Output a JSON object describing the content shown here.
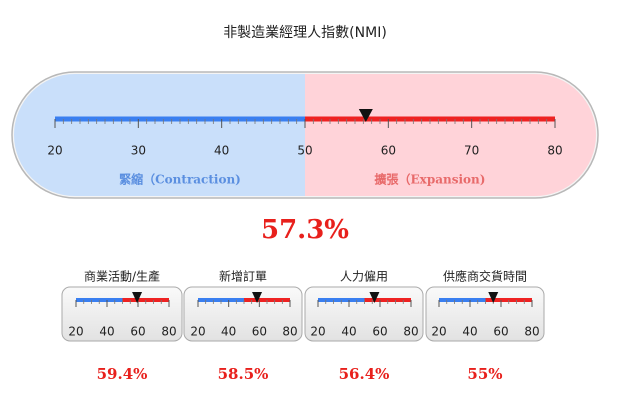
{
  "chart_data": [
    {
      "type": "gauge",
      "title": "非製造業經理人指數(NMI)",
      "values": [
        57.3
      ],
      "value_labels": [
        "57.3%"
      ],
      "xlim": [
        20,
        80
      ],
      "xticks": [
        20,
        30,
        40,
        50,
        60,
        70,
        80
      ],
      "bands": [
        {
          "label": "緊縮（Contraction)",
          "range": [
            20,
            50
          ],
          "color": "#3a7ff0",
          "background": "#c9dffa",
          "label_color": "#5b8fe0"
        },
        {
          "label": "擴張（Expansion)",
          "range": [
            50,
            80
          ],
          "color": "#ee2222",
          "background": "#ffd3d9",
          "label_color": "#e86a6a"
        }
      ]
    },
    {
      "type": "gauge",
      "title": "商業活動/生產",
      "values": [
        59.4
      ],
      "value_labels": [
        "59.4%"
      ],
      "xlim": [
        20,
        80
      ],
      "xticks": [
        20,
        40,
        60,
        80
      ],
      "bands": [
        {
          "range": [
            20,
            50
          ],
          "color": "#3a7ff0"
        },
        {
          "range": [
            50,
            80
          ],
          "color": "#ee2222"
        }
      ]
    },
    {
      "type": "gauge",
      "title": "新增訂單",
      "values": [
        58.5
      ],
      "value_labels": [
        "58.5%"
      ],
      "xlim": [
        20,
        80
      ],
      "xticks": [
        20,
        40,
        60,
        80
      ],
      "bands": [
        {
          "range": [
            20,
            50
          ],
          "color": "#3a7ff0"
        },
        {
          "range": [
            50,
            80
          ],
          "color": "#ee2222"
        }
      ]
    },
    {
      "type": "gauge",
      "title": "人力僱用",
      "values": [
        56.4
      ],
      "value_labels": [
        "56.4%"
      ],
      "xlim": [
        20,
        80
      ],
      "xticks": [
        20,
        40,
        60,
        80
      ],
      "bands": [
        {
          "range": [
            20,
            50
          ],
          "color": "#3a7ff0"
        },
        {
          "range": [
            50,
            80
          ],
          "color": "#ee2222"
        }
      ]
    },
    {
      "type": "gauge",
      "title": "供應商交貨時間",
      "values": [
        55
      ],
      "value_labels": [
        "55%"
      ],
      "xlim": [
        20,
        80
      ],
      "xticks": [
        20,
        40,
        60,
        80
      ],
      "bands": [
        {
          "range": [
            20,
            50
          ],
          "color": "#3a7ff0"
        },
        {
          "range": [
            50,
            80
          ],
          "color": "#ee2222"
        }
      ]
    }
  ]
}
